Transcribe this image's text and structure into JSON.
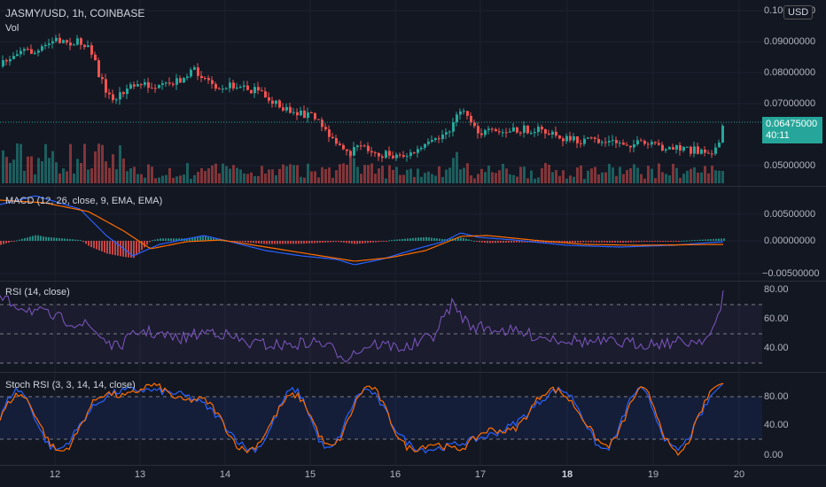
{
  "symbol_title": "JASMY/USD, 1h, COINBASE",
  "vol_label": "Vol",
  "currency_button": "USD",
  "price_axis": {
    "ticks": [
      "0.10000000",
      "0.09000000",
      "0.08000000",
      "0.07000000",
      "0.05000000"
    ],
    "current_price": "0.06475000",
    "countdown": "40:11"
  },
  "macd": {
    "label": "MACD (12, 26, close, 9, EMA, EMA)",
    "ticks": [
      "0.00500000",
      "0.00000000",
      "−0.00500000"
    ]
  },
  "rsi": {
    "label": "RSI (14, close)",
    "ticks": [
      "80.00",
      "60.00",
      "40.00"
    ]
  },
  "stoch": {
    "label": "Stoch RSI (3, 3, 14, 14, close)",
    "ticks": [
      "80.00",
      "40.00",
      "0.00"
    ]
  },
  "x_axis": {
    "labels": [
      {
        "text": "12",
        "bold": false
      },
      {
        "text": "13",
        "bold": false
      },
      {
        "text": "14",
        "bold": false
      },
      {
        "text": "15",
        "bold": false
      },
      {
        "text": "16",
        "bold": false
      },
      {
        "text": "17",
        "bold": false
      },
      {
        "text": "18",
        "bold": true
      },
      {
        "text": "19",
        "bold": false
      },
      {
        "text": "20",
        "bold": false
      }
    ]
  },
  "colors": {
    "up": "#26a69a",
    "down": "#ef5350",
    "macd_line": "#2962ff",
    "signal_line": "#ff6d00",
    "rsi_line": "#7e57c2",
    "stoch_k": "#2962ff",
    "stoch_d": "#ff6d00"
  }
}
